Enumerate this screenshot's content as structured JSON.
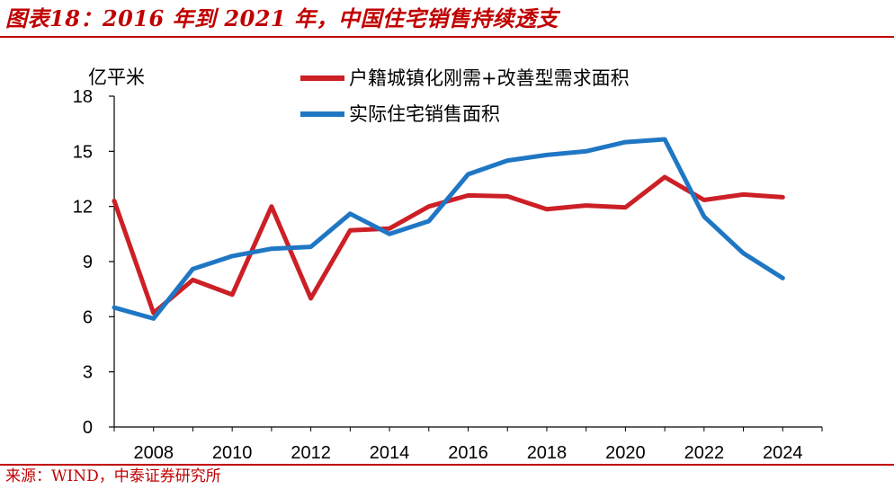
{
  "header": {
    "title": "图表18：2016 年到 2021 年，中国住宅销售持续透支"
  },
  "footer": {
    "source": "来源：WIND，中泰证券研究所"
  },
  "colors": {
    "accent": "#c00000",
    "series_red": "#cc1f26",
    "series_blue": "#1f77c4"
  },
  "chart_data": {
    "type": "line",
    "unit_label": "亿平米",
    "ylim": [
      0,
      18
    ],
    "yticks": [
      "0",
      "3",
      "6",
      "9",
      "12",
      "15",
      "18"
    ],
    "xlim": [
      2007,
      2025
    ],
    "xticks": [
      "2008",
      "2010",
      "2012",
      "2014",
      "2016",
      "2018",
      "2020",
      "2022",
      "2024"
    ],
    "grid": false,
    "legend_position": "top",
    "series": [
      {
        "name": "户籍城镇化刚需+改善型需求面积",
        "color": "#cc1f26",
        "x": [
          2007,
          2008,
          2009,
          2010,
          2011,
          2012,
          2013,
          2014,
          2015,
          2016,
          2017,
          2018,
          2019,
          2020,
          2021,
          2022,
          2023,
          2024
        ],
        "values": [
          12.3,
          6.2,
          8.0,
          7.2,
          12.0,
          7.0,
          10.7,
          10.8,
          12.0,
          12.6,
          12.55,
          11.85,
          12.05,
          11.95,
          13.6,
          12.35,
          12.65,
          12.5
        ]
      },
      {
        "name": "实际住宅销售面积",
        "color": "#1f77c4",
        "x": [
          2007,
          2008,
          2009,
          2010,
          2011,
          2012,
          2013,
          2014,
          2015,
          2016,
          2017,
          2018,
          2019,
          2020,
          2021,
          2022,
          2023,
          2024
        ],
        "values": [
          6.5,
          5.9,
          8.6,
          9.3,
          9.7,
          9.8,
          11.6,
          10.5,
          11.2,
          13.75,
          14.5,
          14.8,
          15.0,
          15.5,
          15.65,
          11.45,
          9.45,
          8.1
        ]
      }
    ]
  }
}
